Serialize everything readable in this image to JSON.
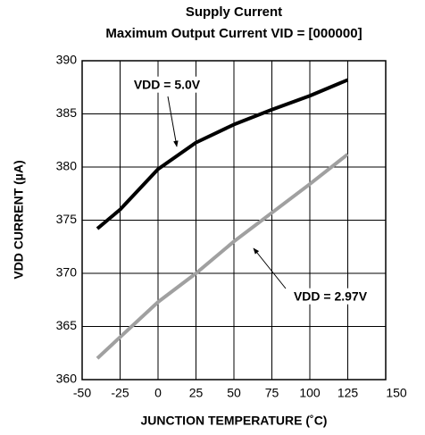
{
  "chart_data": {
    "type": "line",
    "title": "Supply Current",
    "subtitle": "Maximum Output Current VID = [000000]",
    "xlabel": "JUNCTION TEMPERATURE (˚C)",
    "ylabel": "VDD CURRENT (µA)",
    "x": [
      -40,
      -25,
      0,
      25,
      50,
      75,
      100,
      125
    ],
    "series": [
      {
        "name": "VDD = 5.0V",
        "color": "#000000",
        "values": [
          374.2,
          376.0,
          379.8,
          382.3,
          384.0,
          385.4,
          386.7,
          388.2
        ]
      },
      {
        "name": "VDD = 2.97V",
        "color": "#a0a0a0",
        "values": [
          362.0,
          364.0,
          367.3,
          370.0,
          373.0,
          375.7,
          378.4,
          381.2
        ]
      }
    ],
    "xlim": [
      -50,
      150
    ],
    "xticks": [
      -50,
      -25,
      0,
      25,
      50,
      75,
      100,
      125,
      150
    ],
    "ylim": [
      360,
      390
    ],
    "yticks": [
      360,
      365,
      370,
      375,
      380,
      385,
      390
    ],
    "grid": true
  }
}
